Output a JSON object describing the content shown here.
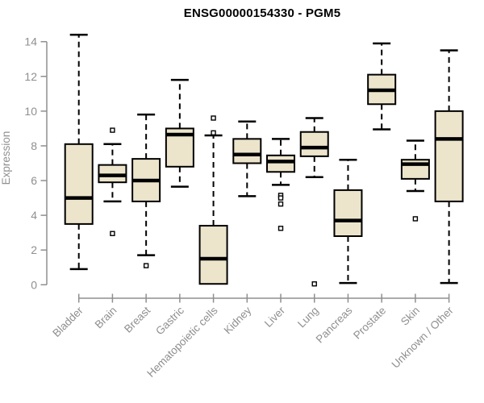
{
  "title": "ENSG00000154330 - PGM5",
  "chart_data": {
    "type": "boxplot",
    "title": "ENSG00000154330 - PGM5",
    "xlabel": "",
    "ylabel": "Expression",
    "ylim": [
      0,
      14
    ],
    "yticks": [
      0,
      2,
      4,
      6,
      8,
      10,
      12,
      14
    ],
    "grid": false,
    "legend": false,
    "categories": [
      "Bladder",
      "Brain",
      "Breast",
      "Gastric",
      "Hematopoietic cells",
      "Kidney",
      "Liver",
      "Lung",
      "Pancreas",
      "Prostate",
      "Skin",
      "Unknown / Other"
    ],
    "boxes": [
      {
        "label": "Bladder",
        "whisker_low": 0.9,
        "q1": 3.5,
        "median": 5.0,
        "q3": 8.1,
        "whisker_high": 14.4,
        "outliers": []
      },
      {
        "label": "Brain",
        "whisker_low": 4.8,
        "q1": 5.9,
        "median": 6.3,
        "q3": 6.9,
        "whisker_high": 8.1,
        "outliers": [
          8.9,
          2.95
        ]
      },
      {
        "label": "Breast",
        "whisker_low": 1.7,
        "q1": 4.8,
        "median": 6.0,
        "q3": 7.25,
        "whisker_high": 9.8,
        "outliers": [
          1.1
        ]
      },
      {
        "label": "Gastric",
        "whisker_low": 5.65,
        "q1": 6.8,
        "median": 8.65,
        "q3": 9.0,
        "whisker_high": 11.8,
        "outliers": []
      },
      {
        "label": "Hematopoietic cells",
        "whisker_low": 0.05,
        "q1": 0.05,
        "median": 1.5,
        "q3": 3.4,
        "whisker_high": 8.6,
        "outliers": [
          9.6,
          8.75
        ]
      },
      {
        "label": "Kidney",
        "whisker_low": 5.1,
        "q1": 7.0,
        "median": 7.5,
        "q3": 8.4,
        "whisker_high": 9.4,
        "outliers": []
      },
      {
        "label": "Liver",
        "whisker_low": 5.75,
        "q1": 6.5,
        "median": 7.1,
        "q3": 7.45,
        "whisker_high": 8.4,
        "outliers": [
          5.15,
          5.0,
          4.65,
          3.25
        ]
      },
      {
        "label": "Lung",
        "whisker_low": 6.2,
        "q1": 7.4,
        "median": 7.9,
        "q3": 8.8,
        "whisker_high": 9.6,
        "outliers": [
          0.05
        ]
      },
      {
        "label": "Pancreas",
        "whisker_low": 0.1,
        "q1": 2.8,
        "median": 3.7,
        "q3": 5.45,
        "whisker_high": 7.2,
        "outliers": []
      },
      {
        "label": "Prostate",
        "whisker_low": 8.95,
        "q1": 10.4,
        "median": 11.2,
        "q3": 12.1,
        "whisker_high": 13.9,
        "outliers": []
      },
      {
        "label": "Skin",
        "whisker_low": 5.4,
        "q1": 6.1,
        "median": 6.95,
        "q3": 7.2,
        "whisker_high": 8.3,
        "outliers": [
          3.8
        ]
      },
      {
        "label": "Unknown / Other",
        "whisker_low": 0.1,
        "q1": 4.8,
        "median": 8.4,
        "q3": 10.0,
        "whisker_high": 13.5,
        "outliers": []
      }
    ],
    "colors": {
      "box_fill": "#ece5cc",
      "box_border": "#000000",
      "median": "#000000",
      "whisker": "#000000",
      "outlier_fill": "#ffffff",
      "axis": "#8f8f8f",
      "tick_label": "#8f8f8f",
      "title": "#000000",
      "background": "#ffffff"
    }
  }
}
